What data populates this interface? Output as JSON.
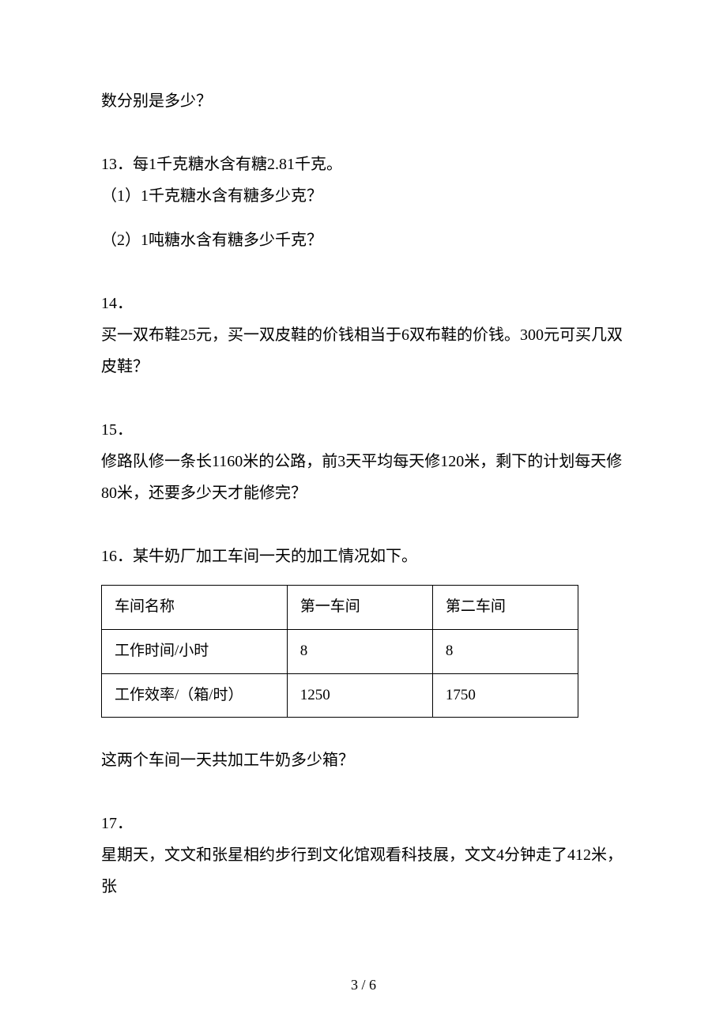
{
  "prev_tail": "数分别是多少？",
  "q13": {
    "stem": "13．每1千克糖水含有糖2.81千克。",
    "s1": "（1）1千克糖水含有糖多少克？",
    "s2": "（2）1吨糖水含有糖多少千克？"
  },
  "q14": {
    "num": "14．",
    "body": "买一双布鞋25元，买一双皮鞋的价钱相当于6双布鞋的价钱。300元可买几双皮鞋？"
  },
  "q15": {
    "num": "15．",
    "body": "修路队修一条长1160米的公路，前3天平均每天修120米，剩下的计划每天修80米，还要多少天才能修完？"
  },
  "q16": {
    "stem": "16．某牛奶厂加工车间一天的加工情况如下。",
    "table": {
      "rows": [
        [
          "车间名称",
          "第一车间",
          "第二车间"
        ],
        [
          "工作时间/小时",
          "8",
          "8"
        ],
        [
          "工作效率/（箱/时）",
          "1250",
          "1750"
        ]
      ]
    },
    "tail": "这两个车间一天共加工牛奶多少箱？"
  },
  "q17": {
    "num": "17．",
    "body": "星期天，文文和张星相约步行到文化馆观看科技展，文文4分钟走了412米，张"
  },
  "footer": "3 / 6"
}
